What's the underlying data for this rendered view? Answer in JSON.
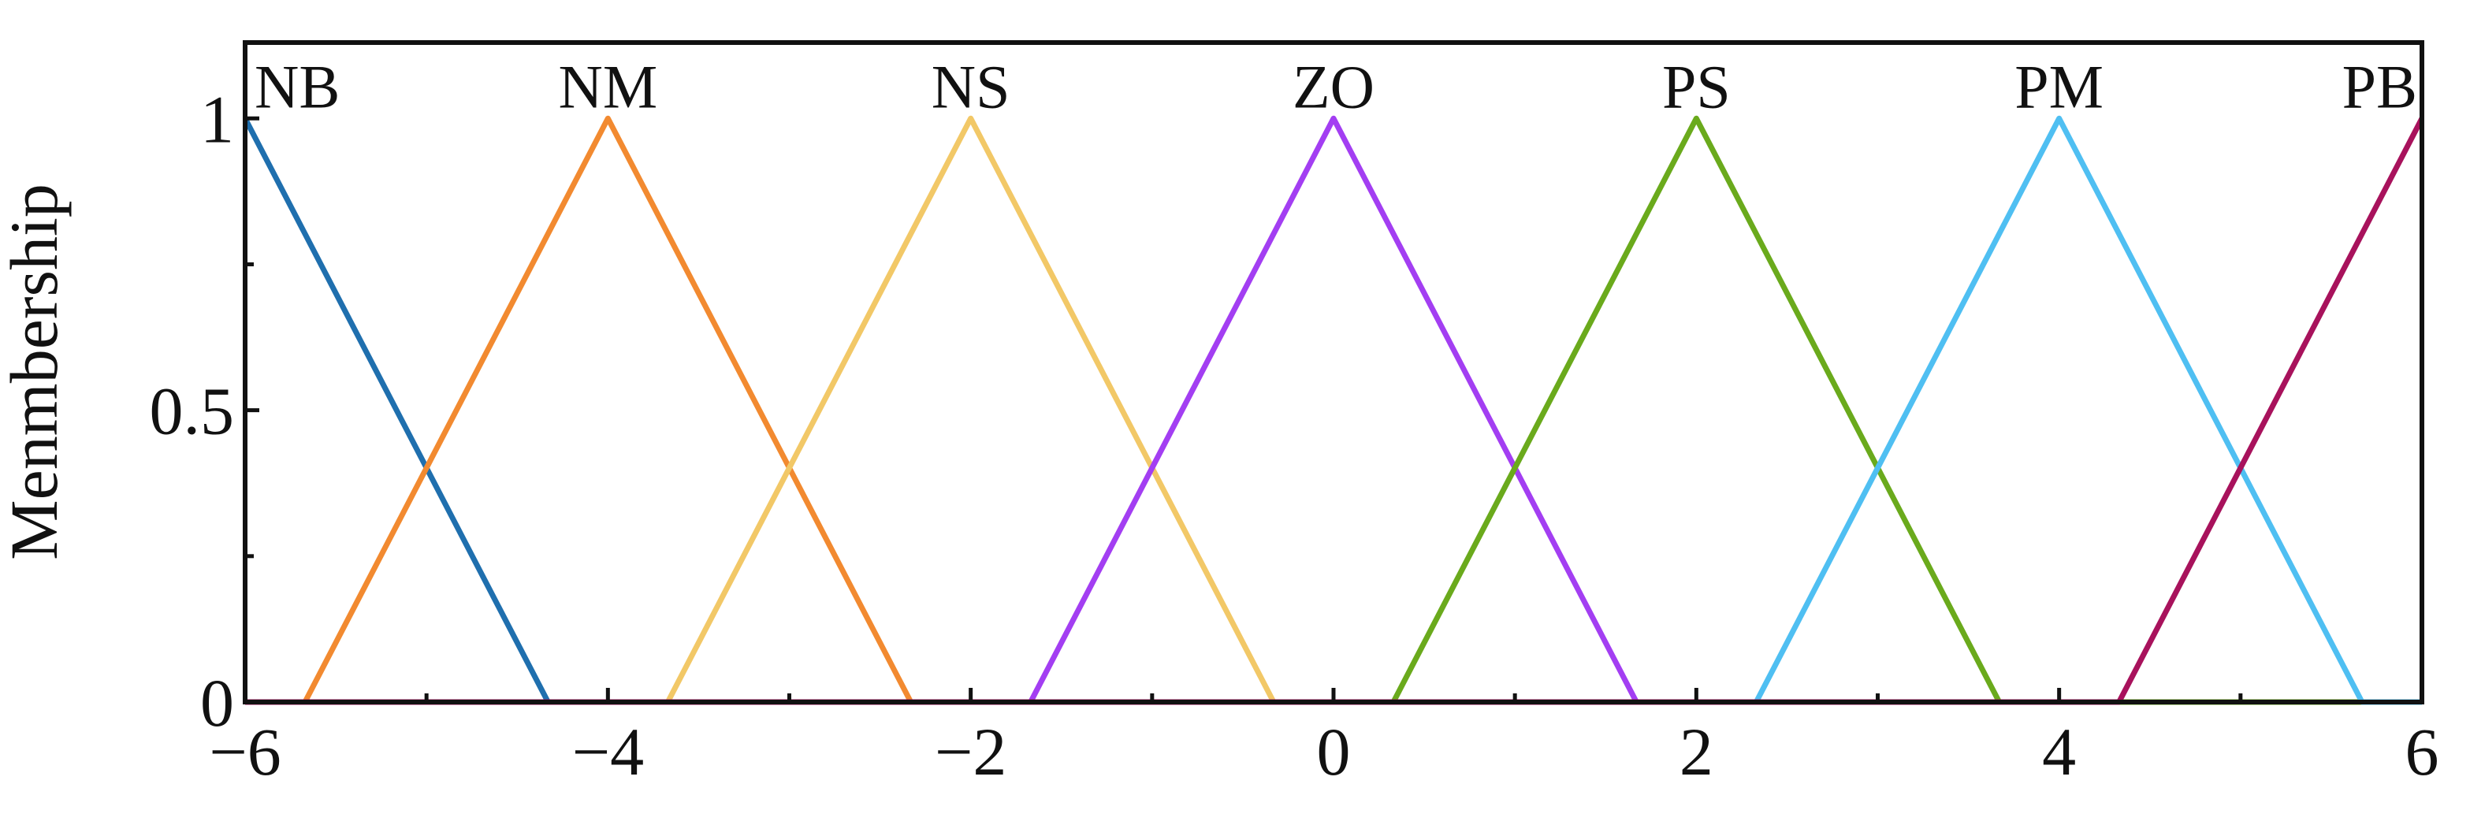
{
  "chart_data": {
    "type": "line",
    "title": "",
    "xlabel": "",
    "ylabel": "Menmbership",
    "xlim": [
      -6,
      6
    ],
    "ylim": [
      0,
      1.13
    ],
    "grid": false,
    "legend": "none",
    "x_ticks": [
      -6,
      -4,
      -2,
      0,
      2,
      4,
      6
    ],
    "x_tick_labels": [
      "−6",
      "−4",
      "−2",
      "0",
      "2",
      "4",
      "6"
    ],
    "y_ticks": [
      0,
      0.5,
      1
    ],
    "y_tick_labels": [
      "0",
      "0.5",
      "1"
    ],
    "series": [
      {
        "name": "NB",
        "color": "#1f6fae",
        "x": [
          -6,
          -4.33,
          6
        ],
        "y": [
          1,
          0,
          0
        ]
      },
      {
        "name": "NM",
        "color": "#f28a30",
        "x": [
          -6,
          -5.67,
          -4,
          -2.33,
          6
        ],
        "y": [
          0,
          0,
          1,
          0,
          0
        ]
      },
      {
        "name": "NS",
        "color": "#f2c867",
        "x": [
          -6,
          -3.67,
          -2,
          -0.33,
          6
        ],
        "y": [
          0,
          0,
          1,
          0,
          0
        ]
      },
      {
        "name": "ZO",
        "color": "#a33ef2",
        "x": [
          -6,
          -1.67,
          0,
          1.67,
          6
        ],
        "y": [
          0,
          0,
          1,
          0,
          0
        ]
      },
      {
        "name": "PS",
        "color": "#6aaa1c",
        "x": [
          -6,
          0.33,
          2,
          3.67,
          6
        ],
        "y": [
          0,
          0,
          1,
          0,
          0
        ]
      },
      {
        "name": "PM",
        "color": "#4fbff2",
        "x": [
          -6,
          2.33,
          4,
          5.67,
          6
        ],
        "y": [
          0,
          0,
          1,
          0,
          0
        ]
      },
      {
        "name": "PB",
        "color": "#a8125c",
        "x": [
          -6,
          4.33,
          6
        ],
        "y": [
          0,
          0,
          1
        ]
      }
    ]
  }
}
